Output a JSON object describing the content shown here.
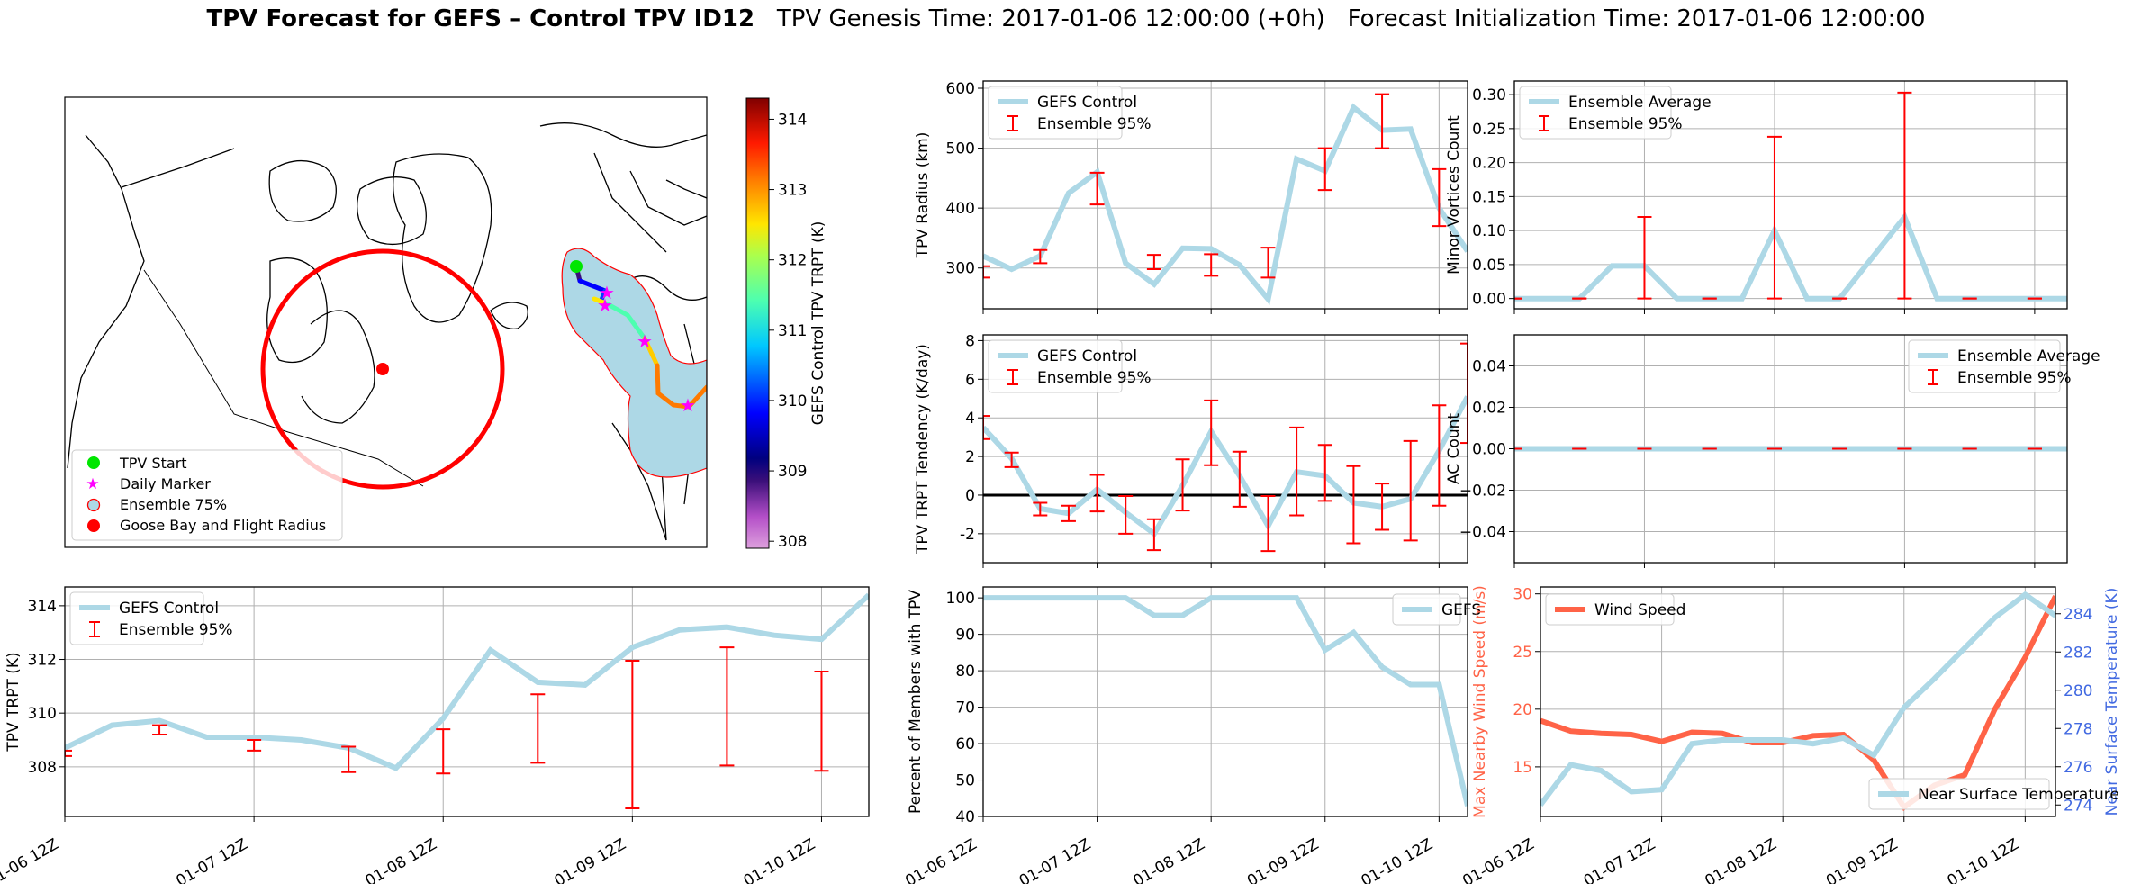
{
  "title": {
    "bold": "TPV Forecast for GEFS – Control TPV ID12",
    "rest": "   TPV Genesis Time: 2017-01-06 12:00:00 (+0h)   Forecast Initialization Time: 2017-01-06 12:00:00"
  },
  "colors": {
    "control_line": "#add8e6",
    "errorbar": "#ff0000",
    "wind": "#ff6347",
    "temp_axis": "#4169e1",
    "grid": "#b0b0b0"
  },
  "map": {
    "legend": [
      "TPV Start",
      "Daily Marker",
      "Ensemble 75%",
      "Goose Bay and Flight Radius"
    ],
    "colorbar": {
      "label": "GEFS Control TPV TRPT (K)",
      "ticks": [
        308,
        309,
        310,
        311,
        312,
        313,
        314
      ],
      "range": [
        307.9,
        314.3
      ]
    }
  },
  "x_ticks": [
    "01-06 12Z",
    "01-07 12Z",
    "01-08 12Z",
    "01-09 12Z",
    "01-10 12Z"
  ],
  "chart_data": [
    {
      "id": "radius",
      "type": "line",
      "ylabel": "TPV Radius (km)",
      "ylim": [
        232,
        612
      ],
      "yticks": [
        300,
        400,
        500,
        600
      ],
      "legend": [
        "GEFS Control",
        "Ensemble 95%"
      ],
      "legend_position": "top-left",
      "x_hours": [
        0,
        6,
        12,
        18,
        24,
        30,
        36,
        42,
        48,
        54,
        60,
        66,
        72,
        78,
        84,
        90,
        96,
        102
      ],
      "series": [
        {
          "name": "GEFS Control",
          "values": [
            320,
            298,
            320,
            425,
            460,
            308,
            273,
            333,
            332,
            305,
            248,
            482,
            462,
            568,
            530,
            532,
            400,
            328
          ]
        }
      ],
      "errorbars": {
        "x_hours": [
          0,
          12,
          24,
          36,
          48,
          60,
          72,
          84,
          96
        ],
        "low": [
          284,
          308,
          406,
          298,
          287,
          284,
          430,
          500,
          370
        ],
        "high": [
          303,
          330,
          459,
          322,
          323,
          334,
          500,
          590,
          465
        ]
      }
    },
    {
      "id": "minor_vortices",
      "type": "line",
      "ylabel": "Minor Vortices Count",
      "ylim": [
        -0.015,
        0.32
      ],
      "yticks": [
        "0.00",
        "0.05",
        "0.10",
        "0.15",
        "0.20",
        "0.25",
        "0.30"
      ],
      "legend": [
        "Ensemble Average",
        "Ensemble 95%"
      ],
      "legend_position": "top-left",
      "x_hours": [
        0,
        6,
        12,
        18,
        24,
        30,
        36,
        42,
        48,
        54,
        60,
        66,
        72,
        78,
        84,
        90,
        96,
        102
      ],
      "series": [
        {
          "name": "Ensemble Average",
          "values": [
            0,
            0,
            0,
            0.048,
            0.048,
            0,
            0,
            0,
            0.1,
            0,
            0,
            0.06,
            0.12,
            0,
            0,
            0,
            0,
            0
          ]
        }
      ],
      "errorbars": {
        "x_hours": [
          0,
          12,
          24,
          36,
          48,
          60,
          72,
          84,
          96
        ],
        "low": [
          0,
          0,
          0,
          0,
          0,
          0,
          0,
          0,
          0
        ],
        "high": [
          0,
          0,
          0.12,
          0,
          0.238,
          0,
          0.303,
          0,
          0
        ]
      }
    },
    {
      "id": "tendency",
      "type": "line",
      "ylabel": "TPV TRPT Tendency (K/day)",
      "ylim": [
        -3.5,
        8.3
      ],
      "yticks": [
        -2,
        0,
        2,
        4,
        6,
        8
      ],
      "zero_line": true,
      "legend": [
        "GEFS Control",
        "Ensemble 95%"
      ],
      "legend_position": "top-left",
      "x_hours": [
        0,
        6,
        12,
        18,
        24,
        30,
        36,
        42,
        48,
        54,
        60,
        66,
        72,
        78,
        84,
        90,
        96,
        102
      ],
      "series": [
        {
          "name": "GEFS Control",
          "values": [
            3.5,
            1.9,
            -0.7,
            -0.95,
            0.3,
            -0.9,
            -2.0,
            0.5,
            3.3,
            1.0,
            -1.6,
            1.2,
            1.0,
            -0.4,
            -0.6,
            -0.2,
            2.3,
            5.1
          ]
        }
      ],
      "errorbars": {
        "x_hours": [
          0,
          6,
          12,
          18,
          24,
          30,
          36,
          42,
          48,
          54,
          60,
          66,
          72,
          78,
          84,
          90,
          96,
          102
        ],
        "low": [
          2.9,
          1.45,
          -1.05,
          -1.35,
          -0.85,
          -2.0,
          -2.85,
          -0.8,
          1.55,
          -0.6,
          -2.9,
          -1.05,
          -0.3,
          -2.5,
          -1.8,
          -2.35,
          -0.55,
          2.7
        ],
        "high": [
          4.1,
          2.2,
          -0.4,
          -0.55,
          1.05,
          -0.05,
          -1.25,
          1.85,
          4.9,
          2.25,
          -0.05,
          3.5,
          2.6,
          1.5,
          0.6,
          2.8,
          4.65,
          7.85
        ]
      }
    },
    {
      "id": "ac_count",
      "type": "line",
      "ylabel": "AC Count",
      "ylim": [
        -0.055,
        0.055
      ],
      "yticks": [
        "−0.04",
        "−0.02",
        "0.00",
        "0.02",
        "0.04"
      ],
      "ytick_values": [
        -0.04,
        -0.02,
        0,
        0.02,
        0.04
      ],
      "legend": [
        "Ensemble Average",
        "Ensemble 95%"
      ],
      "legend_position": "top-right",
      "x_hours": [
        0,
        6,
        12,
        18,
        24,
        30,
        36,
        42,
        48,
        54,
        60,
        66,
        72,
        78,
        84,
        90,
        96,
        102
      ],
      "series": [
        {
          "name": "Ensemble Average",
          "values": [
            0,
            0,
            0,
            0,
            0,
            0,
            0,
            0,
            0,
            0,
            0,
            0,
            0,
            0,
            0,
            0,
            0,
            0
          ]
        }
      ],
      "errorbars": {
        "x_hours": [
          0,
          12,
          24,
          36,
          48,
          60,
          72,
          84,
          96
        ],
        "low": [
          0,
          0,
          0,
          0,
          0,
          0,
          0,
          0,
          0
        ],
        "high": [
          0,
          0,
          0,
          0,
          0,
          0,
          0,
          0,
          0
        ]
      }
    },
    {
      "id": "trpt",
      "type": "line",
      "ylabel": "TPV TRPT (K)",
      "ylim": [
        306.15,
        314.7
      ],
      "yticks": [
        308,
        310,
        312,
        314
      ],
      "legend": [
        "GEFS Control",
        "Ensemble 95%"
      ],
      "legend_position": "top-left",
      "x_hours": [
        0,
        6,
        12,
        18,
        24,
        30,
        36,
        42,
        48,
        54,
        60,
        66,
        72,
        78,
        84,
        90,
        96,
        102
      ],
      "series": [
        {
          "name": "GEFS Control",
          "values": [
            308.7,
            309.55,
            309.72,
            309.1,
            309.1,
            309.0,
            308.7,
            307.95,
            309.8,
            312.35,
            311.15,
            311.05,
            312.45,
            313.1,
            313.2,
            312.9,
            312.75,
            314.4
          ]
        }
      ],
      "errorbars": {
        "x_hours": [
          0,
          12,
          24,
          36,
          48,
          60,
          72,
          84,
          96
        ],
        "low": [
          308.4,
          309.2,
          308.6,
          307.8,
          307.75,
          308.15,
          306.45,
          308.05,
          307.85
        ],
        "high": [
          308.6,
          309.55,
          309.0,
          308.75,
          309.4,
          310.7,
          311.95,
          312.45,
          311.55
        ]
      }
    },
    {
      "id": "percent_members",
      "type": "line",
      "ylabel": "Percent of Members with TPV",
      "ylim": [
        40,
        103
      ],
      "yticks": [
        40,
        50,
        60,
        70,
        80,
        90,
        100
      ],
      "legend": [
        "GEFS"
      ],
      "legend_position": "top-right",
      "x_hours": [
        0,
        6,
        12,
        18,
        24,
        30,
        36,
        42,
        48,
        54,
        60,
        66,
        72,
        78,
        84,
        90,
        96,
        102
      ],
      "series": [
        {
          "name": "GEFS",
          "values": [
            100,
            100,
            100,
            100,
            100,
            100,
            95.2,
            95.2,
            100,
            100,
            100,
            100,
            85.7,
            90.5,
            81,
            76.2,
            76.2,
            42.9
          ]
        }
      ]
    },
    {
      "id": "wind_temp",
      "type": "line",
      "ylabel": "Max Nearby Wind Speed (m/s)",
      "ylabel_right": "Near Surface Temperature (K)",
      "ylim": [
        10.7,
        30.6
      ],
      "yticks": [
        15,
        20,
        25,
        30
      ],
      "ylim_right": [
        273.4,
        285.4
      ],
      "yticks_right": [
        274,
        276,
        278,
        280,
        282,
        284
      ],
      "legend": [
        "Wind Speed",
        "Near Surface Temperature"
      ],
      "legend_position": "top-left / bottom-right",
      "x_hours": [
        0,
        6,
        12,
        18,
        24,
        30,
        36,
        42,
        48,
        54,
        60,
        66,
        72,
        78,
        84,
        90,
        96,
        102
      ],
      "series": [
        {
          "name": "Wind Speed",
          "axis": "left",
          "values": [
            19.0,
            18.1,
            17.9,
            17.8,
            17.2,
            18.0,
            17.9,
            17.1,
            17.1,
            17.7,
            17.8,
            15.6,
            11.5,
            13.4,
            14.3,
            20.0,
            24.5,
            29.8
          ]
        },
        {
          "name": "Near Surface Temperature",
          "axis": "right",
          "values": [
            274.0,
            276.1,
            275.8,
            274.7,
            274.8,
            277.2,
            277.4,
            277.4,
            277.4,
            277.2,
            277.5,
            276.6,
            279.1,
            280.6,
            282.2,
            283.8,
            285.0,
            283.9
          ]
        }
      ]
    }
  ]
}
